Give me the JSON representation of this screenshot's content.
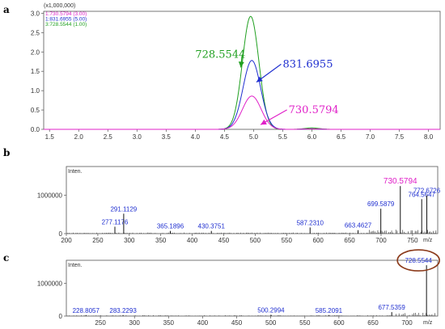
{
  "chart_data": [
    {
      "panel": "a",
      "type": "line",
      "scale_label": "(x1,000,000)",
      "legend": [
        {
          "text": "1:730.5794 (3.00)",
          "color": "#e020c8"
        },
        {
          "text": "1:831.6955 (5.00)",
          "color": "#2030d0"
        },
        {
          "text": "3:728.5544 (1.00)",
          "color": "#20a020"
        }
      ],
      "xlim": [
        1.4,
        8.2
      ],
      "ylim": [
        0,
        3.05
      ],
      "xticks": [
        "1.5",
        "2.0",
        "2.5",
        "3.0",
        "3.5",
        "4.0",
        "4.5",
        "5.0",
        "5.5",
        "6.0",
        "6.5",
        "7.0",
        "7.5",
        "8.0"
      ],
      "yticks": [
        "0.0",
        "0.5",
        "1.0",
        "1.5",
        "2.0",
        "2.5",
        "3.0"
      ],
      "series": [
        {
          "name": "728.5544",
          "color": "#20a020",
          "peak_x": 4.95,
          "peak_y": 2.92,
          "width": 0.14
        },
        {
          "name": "831.6955",
          "color": "#2030d0",
          "peak_x": 4.97,
          "peak_y": 1.78,
          "width": 0.15
        },
        {
          "name": "730.5794",
          "color": "#e020c8",
          "peak_x": 4.97,
          "peak_y": 0.86,
          "width": 0.16
        }
      ],
      "annotations": [
        {
          "text": "728.5544",
          "color": "#20a020",
          "tx": 4.0,
          "ty": 1.85,
          "ax": 4.78,
          "ay": 1.6
        },
        {
          "text": "831.6955",
          "color": "#2030d0",
          "tx": 5.5,
          "ty": 1.6,
          "ax": 5.05,
          "ay": 1.22
        },
        {
          "text": "730.5794",
          "color": "#e020c8",
          "tx": 5.6,
          "ty": 0.42,
          "ax": 5.12,
          "ay": 0.12
        }
      ]
    },
    {
      "panel": "b",
      "type": "bar",
      "ylabel": "Inten.",
      "xunit": "m/z",
      "xlim": [
        200,
        790
      ],
      "ylim": [
        0,
        1750000
      ],
      "xticks": [
        "200",
        "250",
        "300",
        "350",
        "400",
        "450",
        "500",
        "550",
        "600",
        "650",
        "700",
        "750"
      ],
      "yticks": [
        "0",
        "1000000"
      ],
      "peaks": [
        {
          "x": 277.1176,
          "y": 180000,
          "label": "277.1176"
        },
        {
          "x": 291.1129,
          "y": 520000,
          "label": "291.1129"
        },
        {
          "x": 365.1896,
          "y": 70000,
          "label": "365.1896"
        },
        {
          "x": 430.3751,
          "y": 70000,
          "label": "430.3751"
        },
        {
          "x": 587.231,
          "y": 160000,
          "label": "587.2310"
        },
        {
          "x": 663.4627,
          "y": 90000,
          "label": "663.4627"
        },
        {
          "x": 699.5879,
          "y": 650000,
          "label": "699.5879"
        },
        {
          "x": 730.5794,
          "y": 1240000,
          "label": "730.5794",
          "label_color": "#e020c8"
        },
        {
          "x": 764.5647,
          "y": 900000,
          "label": "764.5647"
        },
        {
          "x": 772.6726,
          "y": 1000000,
          "label": "772.6726"
        }
      ]
    },
    {
      "panel": "c",
      "type": "bar",
      "ylabel": "Inten.",
      "xunit": "m/z",
      "xlim": [
        200,
        745
      ],
      "ylim": [
        0,
        1700000
      ],
      "xticks": [
        "250",
        "300",
        "350",
        "400",
        "450",
        "500",
        "550",
        "600",
        "650",
        "700"
      ],
      "yticks": [
        "0",
        "1000000"
      ],
      "peaks": [
        {
          "x": 228.8057,
          "y": 30000,
          "label": "228.8057"
        },
        {
          "x": 283.2293,
          "y": 30000,
          "label": "283.2293"
        },
        {
          "x": 500.2994,
          "y": 40000,
          "label": "500.2994"
        },
        {
          "x": 585.2091,
          "y": 30000,
          "label": "585.2091"
        },
        {
          "x": 677.5359,
          "y": 120000,
          "label": "677.5359"
        },
        {
          "x": 728.5544,
          "y": 1550000,
          "label": "728.5544",
          "circled": true
        }
      ]
    }
  ]
}
